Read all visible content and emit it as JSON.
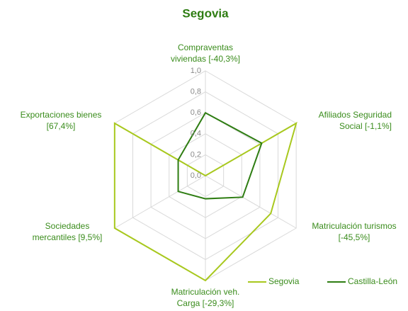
{
  "chart_data": {
    "type": "radar",
    "title": "Segovia",
    "categories": [
      [
        "Compraventas",
        "viviendas [-40,3%]"
      ],
      [
        "Afiliados Seguridad",
        "Social [-1,1%]"
      ],
      [
        "Matriculación turismos",
        "[-45,5%]"
      ],
      [
        "Matriculación veh.",
        "Carga [-29,3%]"
      ],
      [
        "Sociedades",
        "mercantiles [9,5%]"
      ],
      [
        "Exportaciones bienes",
        "[67,4%]"
      ]
    ],
    "series": [
      {
        "name": "Segovia",
        "color": "#a8c81e",
        "values": [
          0.0,
          1.0,
          0.72,
          1.0,
          1.0,
          1.0
        ]
      },
      {
        "name": "Castilla-León",
        "color": "#2e7d12",
        "values": [
          0.6,
          0.62,
          0.41,
          0.22,
          0.3,
          0.3
        ]
      }
    ],
    "ylim": [
      0,
      1
    ],
    "yticks": [
      {
        "value": 0,
        "label": "0,0"
      },
      {
        "value": 0.2,
        "label": "0,2"
      },
      {
        "value": 0.4,
        "label": "0,4"
      },
      {
        "value": 0.6,
        "label": "0,6"
      },
      {
        "value": 0.8,
        "label": "0,8"
      },
      {
        "value": 1,
        "label": "1,0"
      }
    ],
    "grid": true,
    "legend": "bottom-right"
  }
}
